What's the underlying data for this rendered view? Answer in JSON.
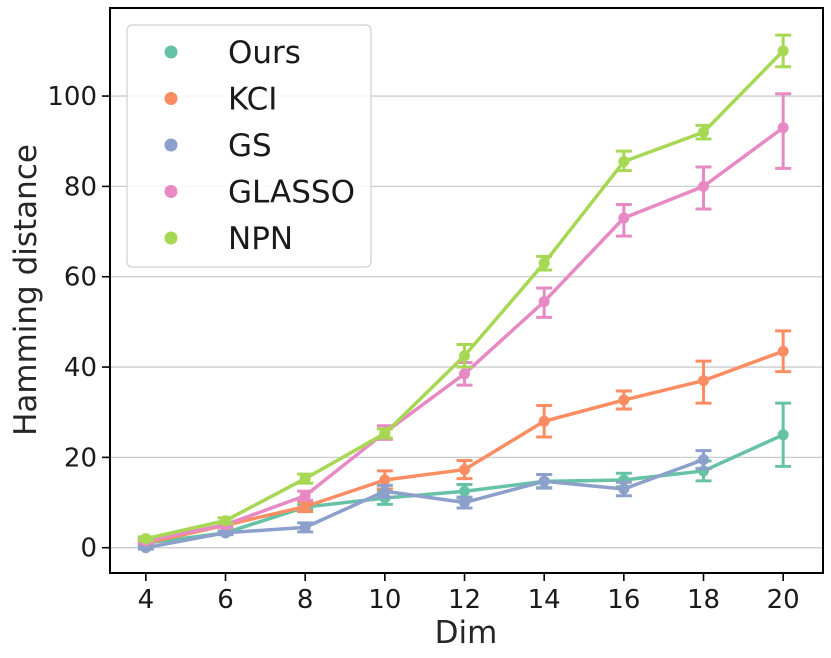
{
  "chart_data": {
    "type": "line",
    "title": "",
    "xlabel": "Dim",
    "ylabel": "Hamming distance",
    "x": [
      4,
      6,
      8,
      10,
      12,
      14,
      16,
      18,
      20
    ],
    "xticks": [
      "4",
      "6",
      "8",
      "10",
      "12",
      "14",
      "16",
      "18",
      "20"
    ],
    "yticks": [
      "0",
      "20",
      "40",
      "60",
      "80",
      "100"
    ],
    "ytick_values": [
      0,
      20,
      40,
      60,
      80,
      100
    ],
    "xlim": [
      3.1,
      21.0
    ],
    "ylim": [
      -5.6,
      119.5
    ],
    "grid": "horizontal",
    "legend_position": "top-left",
    "series": [
      {
        "name": "Ours",
        "color": "#66c2a5",
        "values": [
          1,
          3.3,
          9,
          11,
          12.5,
          14.7,
          15,
          17,
          25
        ],
        "err_low": [
          0.6,
          2.9,
          8.5,
          9.6,
          11,
          13.3,
          13.5,
          14.8,
          18
        ],
        "err_high": [
          1.4,
          3.7,
          9.5,
          12.5,
          14,
          16.2,
          16.5,
          19.2,
          32
        ]
      },
      {
        "name": "KCI",
        "color": "#fc8d62",
        "values": [
          1,
          5,
          9.1,
          15,
          17.3,
          28,
          32.7,
          37,
          43.5
        ],
        "err_low": [
          0.6,
          4.5,
          8,
          13,
          15.3,
          24.5,
          30.7,
          32,
          39
        ],
        "err_high": [
          1.4,
          5.5,
          10.2,
          17,
          19.3,
          31.5,
          34.7,
          41.3,
          48
        ]
      },
      {
        "name": "GS",
        "color": "#8da0cb",
        "values": [
          0,
          3.3,
          4.5,
          12.5,
          10,
          14.7,
          13,
          19.5,
          null
        ],
        "err_low": [
          -0.3,
          2.9,
          3.5,
          11.2,
          8.8,
          13.2,
          11.5,
          17.5,
          null
        ],
        "err_high": [
          0.3,
          3.7,
          5.5,
          13.8,
          11.2,
          16.2,
          14.5,
          21.5,
          null
        ]
      },
      {
        "name": "GLASSO",
        "color": "#e78ac3",
        "values": [
          1.5,
          5.1,
          11.5,
          25.5,
          38.5,
          54.5,
          73,
          80,
          93
        ],
        "err_low": [
          1.1,
          4.6,
          10.5,
          24,
          36,
          51,
          69,
          75,
          84
        ],
        "err_high": [
          1.9,
          5.6,
          12.5,
          27,
          41,
          57.5,
          76,
          84.3,
          100.5
        ]
      },
      {
        "name": "NPN",
        "color": "#a6d854",
        "values": [
          2,
          6,
          15.3,
          25.3,
          42.5,
          63,
          85.5,
          92,
          110
        ],
        "err_low": [
          1.6,
          5.4,
          14.3,
          24.3,
          40,
          61.5,
          83.5,
          90.5,
          106.5
        ],
        "err_high": [
          2.4,
          6.6,
          16.3,
          26.3,
          45,
          64.5,
          87.8,
          93.5,
          113.5
        ]
      }
    ]
  }
}
